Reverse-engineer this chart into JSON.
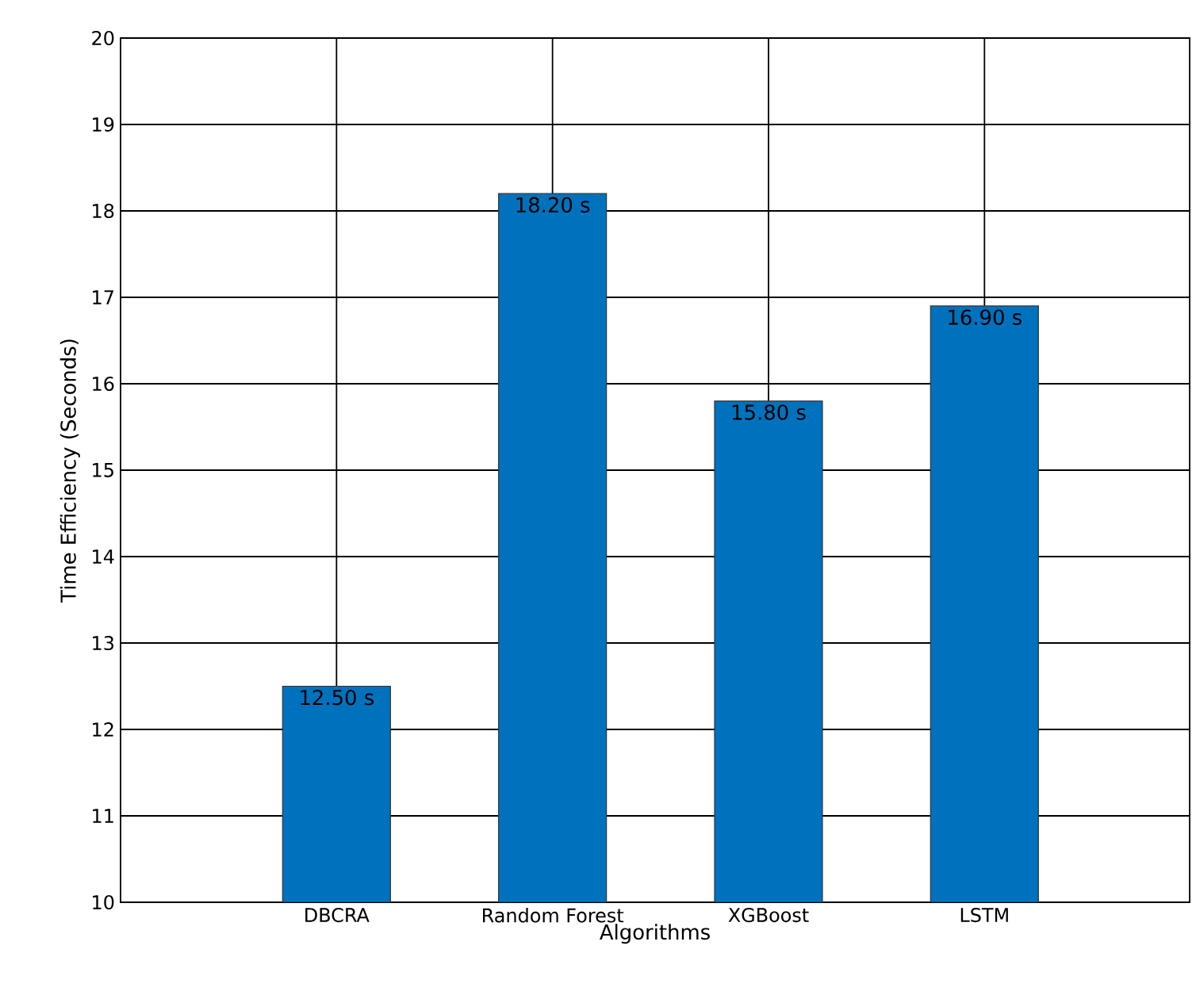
{
  "chart_data": {
    "type": "bar",
    "xlabel": "Algorithms",
    "ylabel": "Time Efficiency (Seconds)",
    "categories": [
      "DBCRA",
      "Random Forest",
      "XGBoost",
      "LSTM"
    ],
    "values": [
      12.5,
      18.2,
      15.8,
      16.9
    ],
    "value_labels": [
      "12.50 s",
      "18.20 s",
      "15.80 s",
      "16.90 s"
    ],
    "color": "#0072bd",
    "ylim": [
      10,
      20
    ],
    "yticks": [
      10,
      11,
      12,
      13,
      14,
      15,
      16,
      17,
      18,
      19,
      20
    ],
    "grid": true
  }
}
